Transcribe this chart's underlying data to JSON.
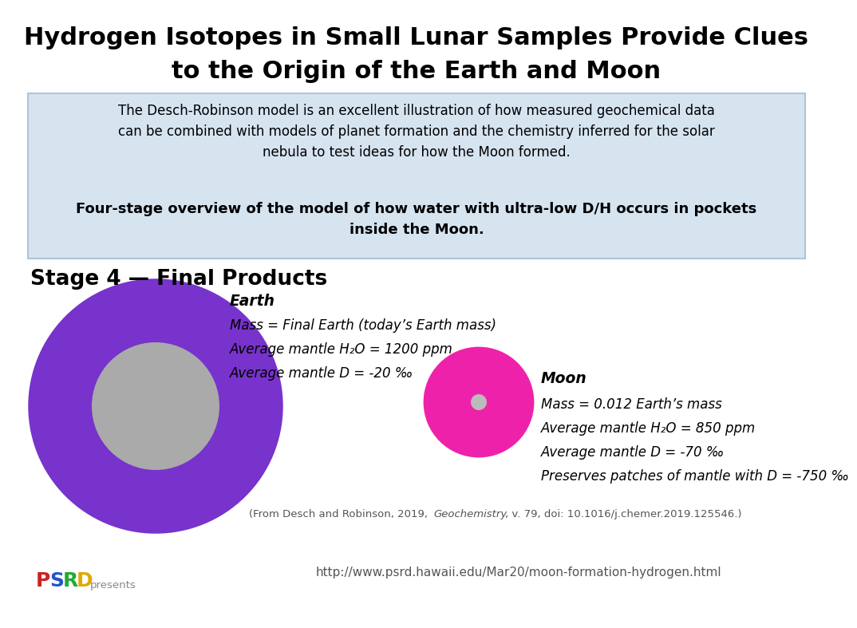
{
  "title_line1": "Hydrogen Isotopes in Small Lunar Samples Provide Clues",
  "title_line2": "to the Origin of the Earth and Moon",
  "subtitle_box_text": "The Desch-Robinson model is an excellent illustration of how measured geochemical data\ncan be combined with models of planet formation and the chemistry inferred for the solar\nnebula to test ideas for how the Moon formed.",
  "subtitle_bold": "Four-stage overview of the model of how water with ultra-low D/H occurs in pockets\ninside the Moon.",
  "stage_label": "Stage 4 — Final Products",
  "earth_label": "Earth",
  "earth_line1": "Mass = Final Earth (today’s Earth mass)",
  "earth_line2": "Average mantle H₂O = 1200 ppm",
  "earth_line3": "Average mantle D = -20 ‰",
  "moon_label": "Moon",
  "moon_line1": "Mass = 0.012 Earth’s mass",
  "moon_line2": "Average mantle H₂O = 850 ppm",
  "moon_line3": "Average mantle D = -70 ‰",
  "moon_line4": "Preserves patches of mantle with D = -750 ‰",
  "citation_pre": "(From Desch and Robinson, 2019, ",
  "citation_italic": "Geochemistry",
  "citation_post": ", v. 79, doi: 10.1016/j.chemer.2019.125546.)",
  "url": "http://www.psrd.hawaii.edu/Mar20/moon-formation-hydrogen.html",
  "psrd_text": "presents",
  "bg_color": "#ffffff",
  "box_bg_color": "#d6e4f0",
  "box_edge_color": "#b0c4d8",
  "earth_outer_color": "#7733cc",
  "earth_outer_edge": "#0000cc",
  "earth_inner_color": "#aaaaaa",
  "moon_outer_color": "#ee22aa",
  "moon_center_color": "#bbbbbb",
  "psrd_colors": [
    "#cc2222",
    "#2255cc",
    "#22aa33",
    "#ddaa00"
  ],
  "psrd_letters": [
    "P",
    "S",
    "R",
    "D"
  ]
}
